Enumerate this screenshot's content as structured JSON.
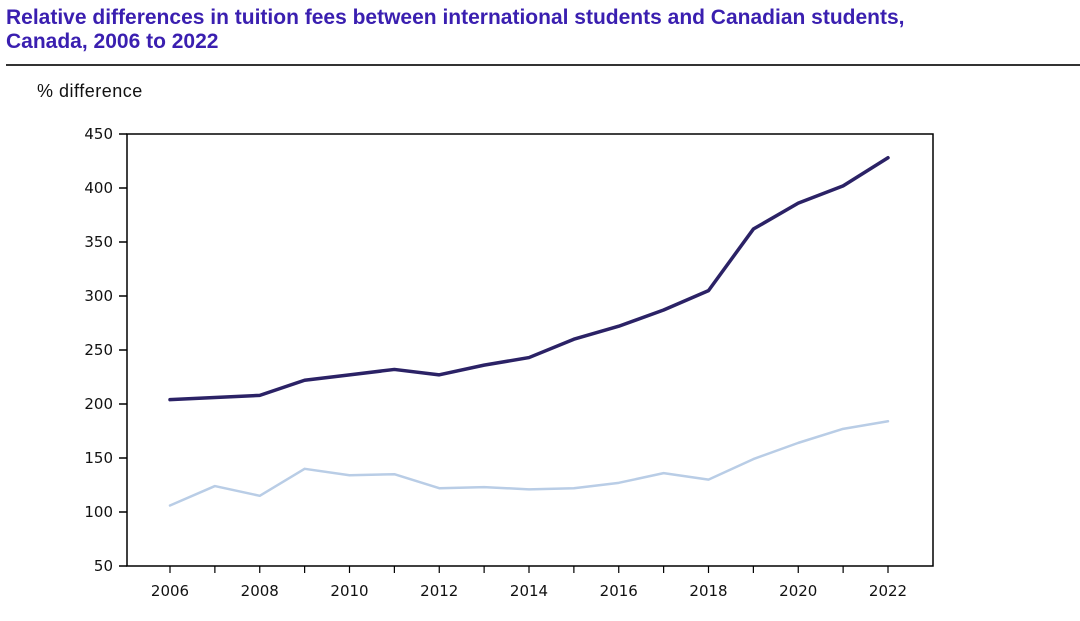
{
  "header": {
    "title_line1": "Relative differences in tuition fees between international students and Canadian students,",
    "title_line2": "Canada, 2006 to 2022"
  },
  "chart_data": {
    "type": "line",
    "title": "Relative differences in tuition fees between international students and Canadian students, Canada, 2006 to 2022",
    "ylabel": "% difference",
    "xlabel": "",
    "ylim": [
      50,
      450
    ],
    "xlim": [
      2006,
      2022
    ],
    "yticks": [
      50,
      100,
      150,
      200,
      250,
      300,
      350,
      400,
      450
    ],
    "xticks": [
      2006,
      2008,
      2010,
      2012,
      2014,
      2016,
      2018,
      2020,
      2022
    ],
    "grid": false,
    "x": [
      2006,
      2007,
      2008,
      2009,
      2010,
      2011,
      2012,
      2013,
      2014,
      2015,
      2016,
      2017,
      2018,
      2019,
      2020,
      2021,
      2022
    ],
    "series": [
      {
        "color": "#2b2266",
        "values": [
          204,
          206,
          208,
          222,
          227,
          232,
          227,
          236,
          243,
          260,
          272,
          287,
          305,
          362,
          386,
          402,
          428
        ]
      },
      {
        "color": "#b9cde6",
        "values": [
          106,
          124,
          115,
          140,
          134,
          135,
          122,
          123,
          121,
          122,
          127,
          136,
          130,
          149,
          164,
          177,
          184
        ]
      }
    ]
  }
}
